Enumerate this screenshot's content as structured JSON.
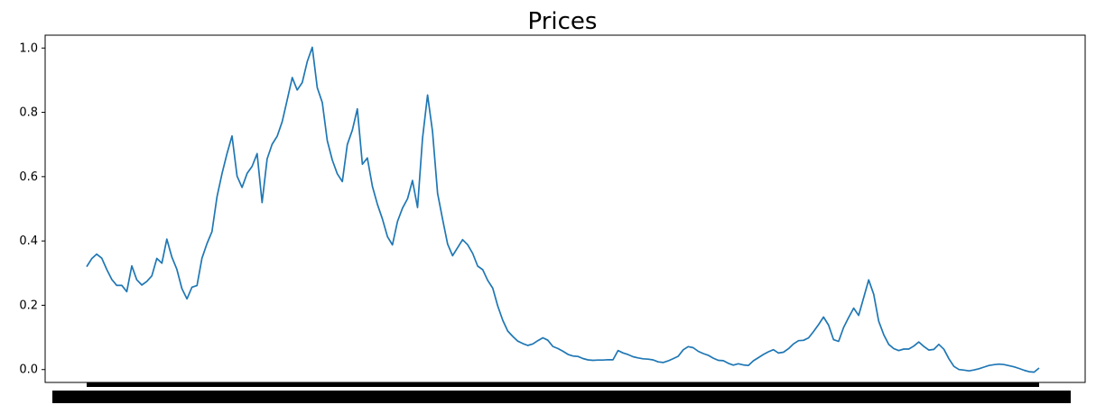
{
  "chart_data": {
    "type": "line",
    "title": "Prices",
    "xlabel": "",
    "ylabel": "",
    "ylim": [
      -0.04,
      1.04
    ],
    "y_ticks": [
      "0.0",
      "0.2",
      "0.4",
      "0.6",
      "0.8",
      "1.0"
    ],
    "x_tick_labels_overlapping": true,
    "grid": false,
    "legend": "none",
    "series": [
      {
        "color": "#1f77b4",
        "values": [
          0.32,
          0.34,
          0.35,
          0.335,
          0.3,
          0.27,
          0.255,
          0.26,
          0.245,
          0.33,
          0.29,
          0.275,
          0.285,
          0.3,
          0.35,
          0.33,
          0.4,
          0.34,
          0.3,
          0.24,
          0.21,
          0.25,
          0.26,
          0.35,
          0.4,
          0.44,
          0.55,
          0.62,
          0.68,
          0.73,
          0.6,
          0.56,
          0.6,
          0.62,
          0.66,
          0.51,
          0.65,
          0.7,
          0.73,
          0.78,
          0.85,
          0.92,
          0.88,
          0.9,
          0.96,
          1.0,
          0.87,
          0.82,
          0.7,
          0.64,
          0.6,
          0.58,
          0.7,
          0.75,
          0.82,
          0.65,
          0.67,
          0.58,
          0.52,
          0.47,
          0.41,
          0.38,
          0.45,
          0.49,
          0.52,
          0.58,
          0.5,
          0.72,
          0.86,
          0.75,
          0.56,
          0.48,
          0.4,
          0.36,
          0.38,
          0.4,
          0.38,
          0.35,
          0.31,
          0.3,
          0.27,
          0.25,
          0.2,
          0.16,
          0.13,
          0.115,
          0.1,
          0.09,
          0.08,
          0.08,
          0.085,
          0.09,
          0.08,
          0.06,
          0.055,
          0.05,
          0.045,
          0.045,
          0.048,
          0.045,
          0.042,
          0.04,
          0.038,
          0.034,
          0.03,
          0.025,
          0.05,
          0.04,
          0.035,
          0.03,
          0.03,
          0.032,
          0.036,
          0.038,
          0.035,
          0.034,
          0.038,
          0.042,
          0.045,
          0.06,
          0.065,
          0.058,
          0.045,
          0.038,
          0.035,
          0.03,
          0.028,
          0.032,
          0.028,
          0.025,
          0.03,
          0.025,
          0.02,
          0.03,
          0.035,
          0.04,
          0.045,
          0.05,
          0.04,
          0.045,
          0.06,
          0.08,
          0.095,
          0.1,
          0.11,
          0.13,
          0.15,
          0.17,
          0.14,
          0.09,
          0.08,
          0.12,
          0.15,
          0.18,
          0.16,
          0.22,
          0.28,
          0.24,
          0.16,
          0.12,
          0.09,
          0.075,
          0.065,
          0.065,
          0.06,
          0.065,
          0.075,
          0.06,
          0.05,
          0.055,
          0.075,
          0.065,
          0.04,
          0.02,
          0.012,
          0.01,
          0.005,
          0.004,
          0.003,
          0.003,
          0.004,
          0.004,
          0.005,
          0.005,
          0.005,
          0.006,
          0.006,
          0.005,
          0.004,
          0.004,
          0.005
        ]
      }
    ]
  }
}
